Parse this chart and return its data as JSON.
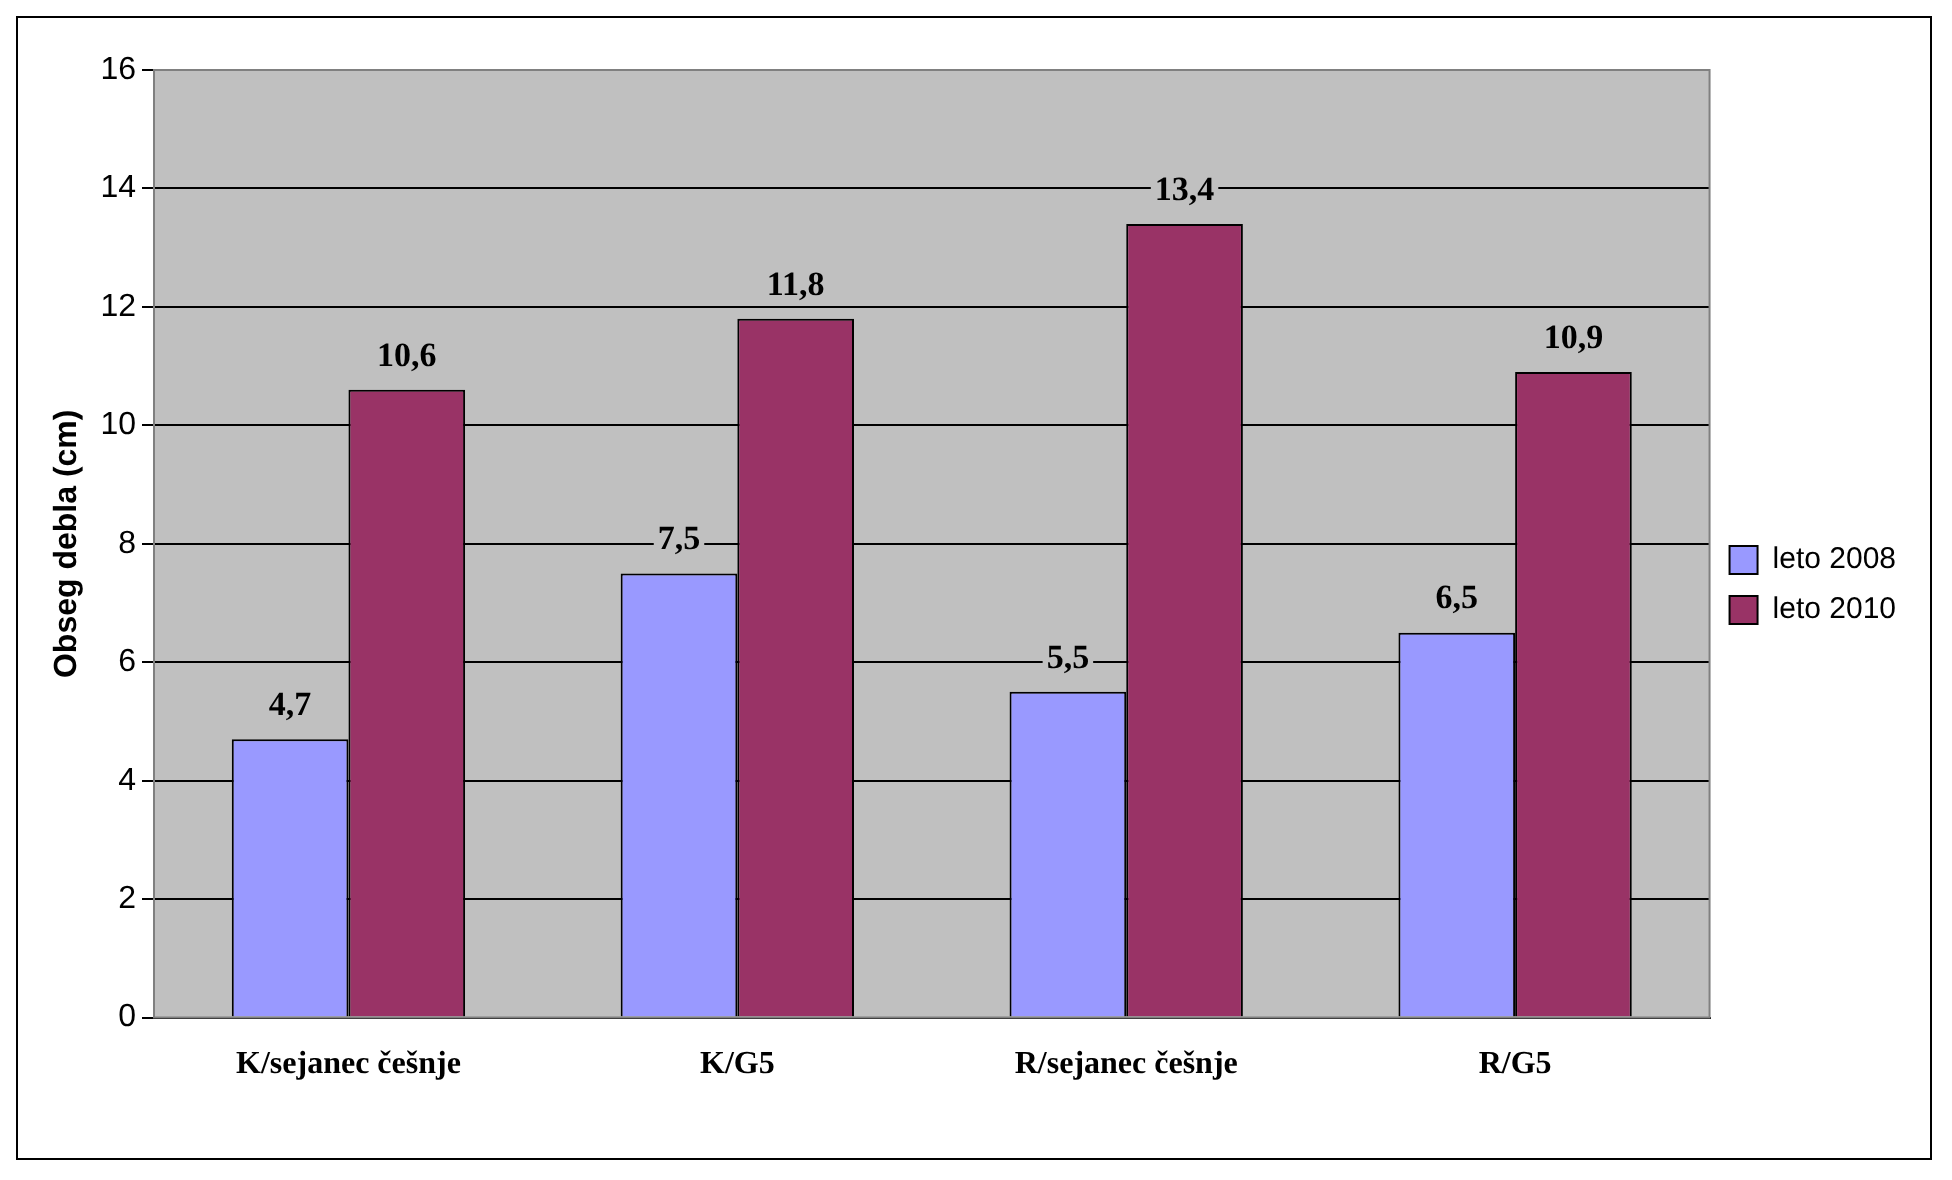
{
  "chart_data": {
    "type": "bar",
    "ylabel": "Obseg debla (cm)",
    "categories": [
      "K/sejanec češnje",
      "K/G5",
      "R/sejanec češnje",
      "R/G5"
    ],
    "series": [
      {
        "name": "leto 2008",
        "color": "#9999ff",
        "values": [
          4.7,
          7.5,
          5.5,
          6.5
        ],
        "value_labels": [
          "4,7",
          "7,5",
          "5,5",
          "6,5"
        ]
      },
      {
        "name": "leto 2010",
        "color": "#993366",
        "values": [
          10.6,
          11.8,
          13.4,
          10.9
        ],
        "value_labels": [
          "10,6",
          "11,8",
          "13,4",
          "10,9"
        ]
      }
    ],
    "ylim": [
      0,
      16
    ],
    "yticks": [
      0,
      2,
      4,
      6,
      8,
      10,
      12,
      14,
      16
    ],
    "grid": "y",
    "legend": "right"
  }
}
